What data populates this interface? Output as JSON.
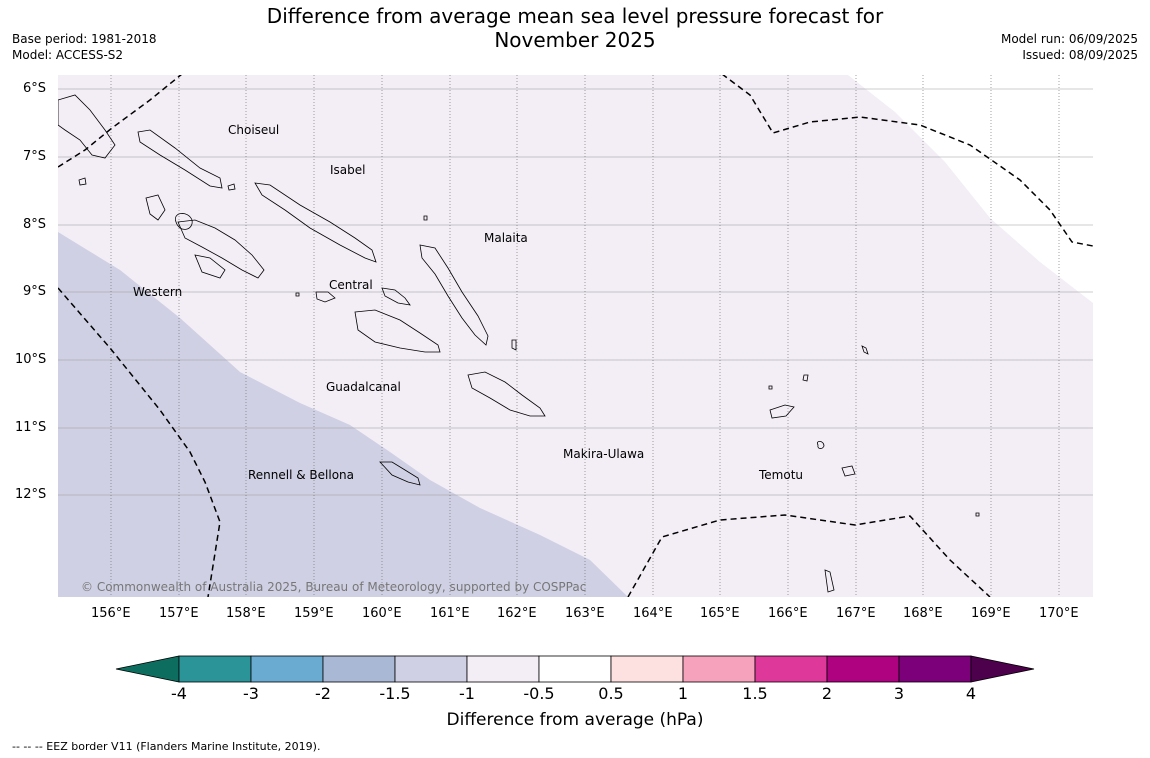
{
  "title_line1": "Difference from average mean sea level pressure forecast for",
  "title_line2": "November 2025",
  "base_period": "Base period: 1981-2018",
  "model": "Model: ACCESS-S2",
  "model_run": "Model run: 06/09/2025",
  "issued": "Issued: 08/09/2025",
  "lat_labels": [
    "6°S",
    "7°S",
    "8°S",
    "9°S",
    "10°S",
    "11°S",
    "12°S"
  ],
  "lon_labels": [
    "156°E",
    "157°E",
    "158°E",
    "159°E",
    "160°E",
    "161°E",
    "162°E",
    "163°E",
    "164°E",
    "165°E",
    "166°E",
    "167°E",
    "168°E",
    "169°E",
    "170°E"
  ],
  "places": {
    "choiseul": "Choiseul",
    "isabel": "Isabel",
    "malaita": "Malaita",
    "western": "Western",
    "central": "Central",
    "guadalcanal": "Guadalcanal",
    "makira": "Makira-Ulawa",
    "rennell": "Rennell & Bellona",
    "temotu": "Temotu"
  },
  "copyright": "© Commonwealth of Australia 2025, Bureau of Meteorology, supported by COSPPac",
  "colorbar": {
    "ticks": [
      "-4",
      "-3",
      "-2",
      "-1.5",
      "-1",
      "-0.5",
      "0.5",
      "1",
      "1.5",
      "2",
      "3",
      "4"
    ],
    "colors": [
      "#0d6e60",
      "#2a9499",
      "#6aabd2",
      "#a9b9d5",
      "#cfd0e3",
      "#f3edf6",
      "#ffffff",
      "#fde0e0",
      "#f7a2bd",
      "#de389a",
      "#ae0280",
      "#7b007a",
      "#4d004b"
    ],
    "title": "Difference from average (hPa)"
  },
  "footnote": "--  --  -- EEZ border V11 (Flanders Marine Institute, 2019).",
  "map_colors": {
    "light_purple": "#f3edf6",
    "lavender": "#cfd0e3"
  }
}
